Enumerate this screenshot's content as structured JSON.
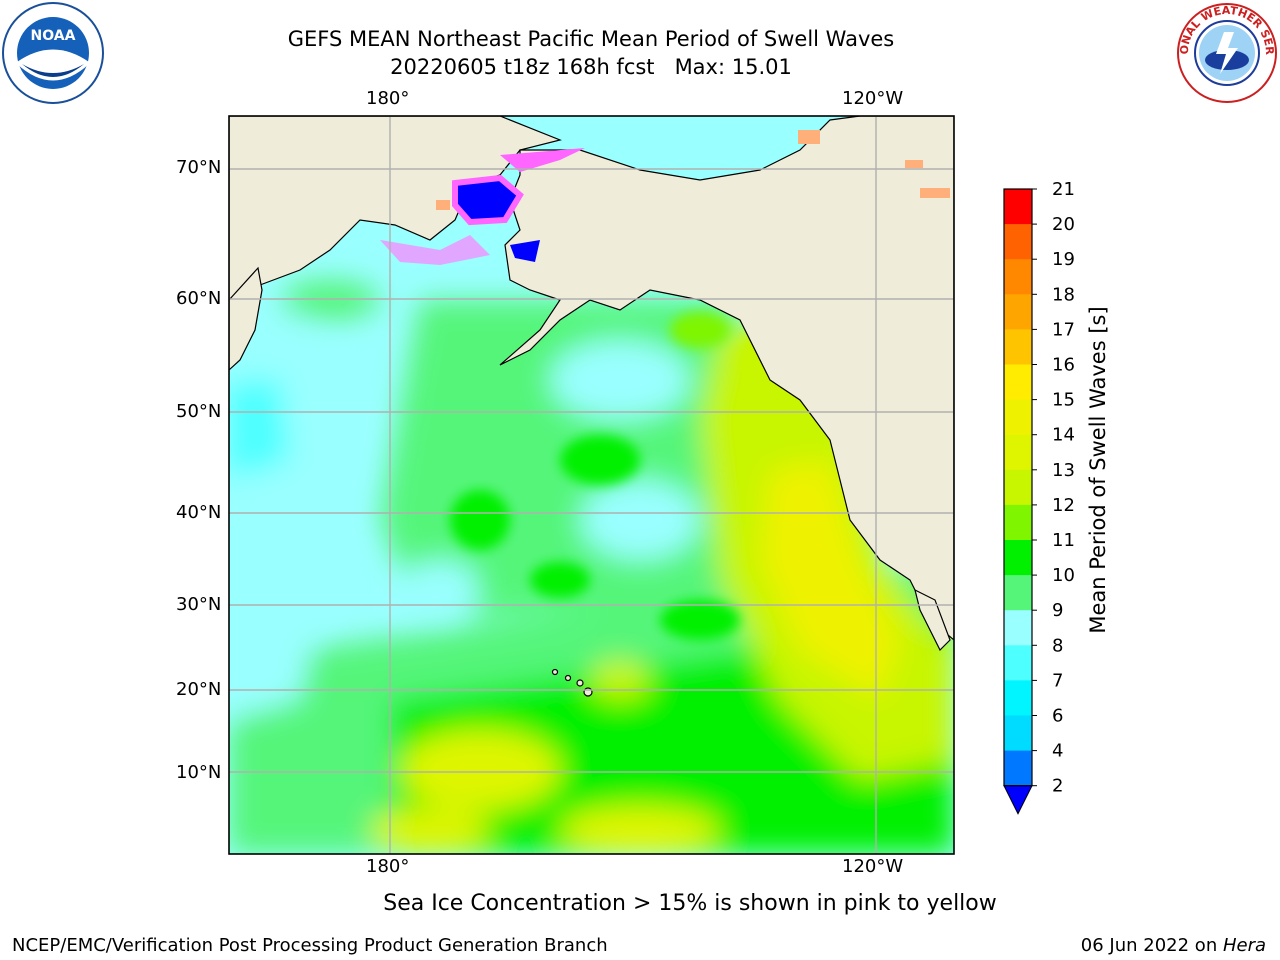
{
  "title": {
    "line1": "GEFS MEAN Northeast Pacific Mean Period of Swell Waves",
    "line2": "20220605 t18z 168h fcst   Max: 15.01"
  },
  "map": {
    "top_lon_labels": [
      "180°",
      "120°W"
    ],
    "bottom_lon_labels": [
      "180°",
      "120°W"
    ],
    "lat_labels": [
      "70°N",
      "60°N",
      "50°N",
      "40°N",
      "30°N",
      "20°N",
      "10°N"
    ],
    "land_color": "#efedda",
    "grid_color": "#b0b0b0"
  },
  "colorbar": {
    "label": "Mean Period of Swell Waves [s]",
    "ticks": [
      "21",
      "20",
      "19",
      "18",
      "17",
      "16",
      "15",
      "14",
      "13",
      "12",
      "11",
      "10",
      "9",
      "8",
      "7",
      "6",
      "4",
      "2"
    ],
    "colors_top_to_bottom": [
      "#ff0000",
      "#ff3a00",
      "#ff6200",
      "#ff8800",
      "#ffa500",
      "#ffc400",
      "#ffec00",
      "#eef200",
      "#dff500",
      "#c8f500",
      "#7ff500",
      "#00f000",
      "#55f57a",
      "#9affff",
      "#4dffff",
      "#00f5ff",
      "#00dcff",
      "#0078ff"
    ],
    "under_color": "#0000ff"
  },
  "note": "Sea Ice Concentration > 15% is shown in pink to yellow",
  "footer": {
    "left": "NCEP/EMC/Verification Post Processing Product Generation Branch",
    "date": "06 Jun 2022 on ",
    "host": "Hera"
  },
  "logos": {
    "noaa_text": "NOAA",
    "nws_text": "NATIONAL WEATHER SERVICE"
  }
}
